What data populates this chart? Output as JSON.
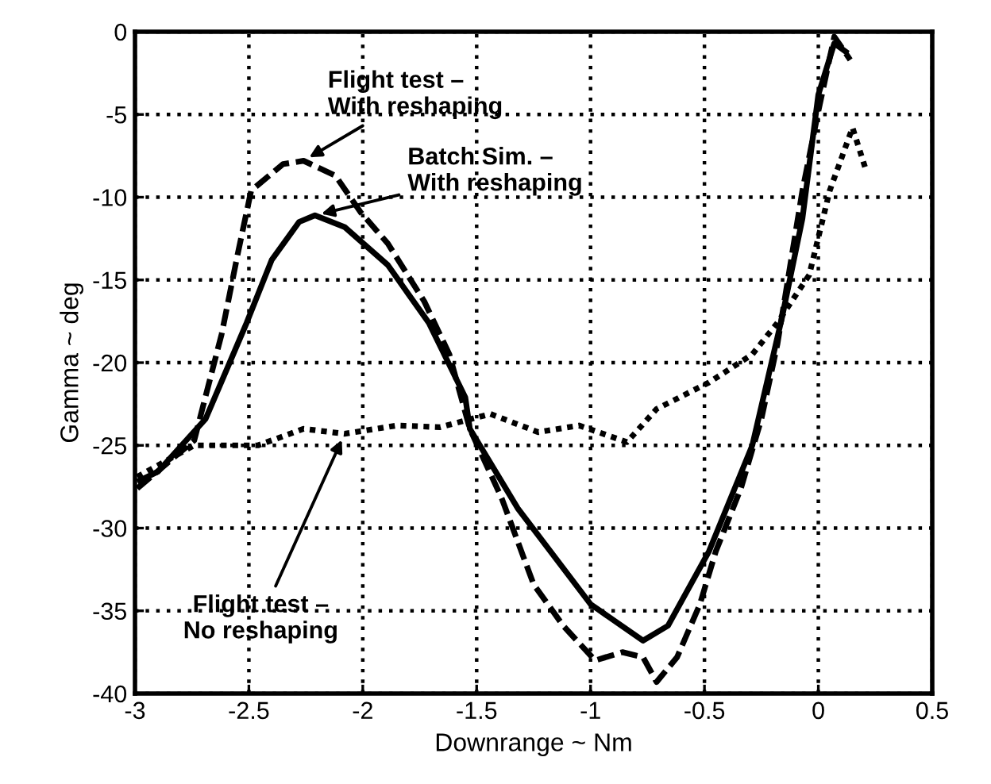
{
  "chart_data": {
    "type": "line",
    "xlabel": "Downrange ~ Nm",
    "ylabel": "Gamma ~ deg",
    "xlim": [
      -3,
      0.5
    ],
    "ylim": [
      -40,
      0
    ],
    "xticks": [
      -3,
      -2.5,
      -2,
      -1.5,
      -1,
      -0.5,
      0,
      0.5
    ],
    "yticks": [
      -40,
      -35,
      -30,
      -25,
      -20,
      -15,
      -10,
      -5,
      0
    ],
    "grid": true,
    "legend": false,
    "series": [
      {
        "color": "#000000",
        "line_style": "dashed",
        "x": [
          -2.99,
          -2.74,
          -2.62,
          -2.55,
          -2.49,
          -2.35,
          -2.26,
          -2.12,
          -2.01,
          -1.89,
          -1.73,
          -1.62,
          -1.53,
          -1.39,
          -1.25,
          -1.12,
          -0.98,
          -0.86,
          -0.77,
          -0.71,
          -0.62,
          -0.52,
          -0.45,
          -0.34,
          -0.25,
          -0.18,
          -0.07,
          0,
          0.07,
          0.14
        ],
        "values": [
          -27.6,
          -24.7,
          -18.3,
          -13.5,
          -9.6,
          -8.0,
          -7.8,
          -8.7,
          -10.9,
          -12.8,
          -16.3,
          -19.5,
          -24.0,
          -28.2,
          -33.4,
          -35.9,
          -38.0,
          -37.5,
          -37.8,
          -39.3,
          -37.8,
          -34.6,
          -31.4,
          -27.6,
          -23.4,
          -18.9,
          -9.6,
          -4.8,
          -0.3,
          -1.7
        ]
      },
      {
        "color": "#000000",
        "line_style": "solid",
        "x": [
          -2.99,
          -2.9,
          -2.69,
          -2.51,
          -2.4,
          -2.28,
          -2.21,
          -2.08,
          -1.89,
          -1.71,
          -1.55,
          -1.53,
          -1.32,
          -1.0,
          -0.77,
          -0.66,
          -0.48,
          -0.29,
          -0.16,
          -0.07,
          0,
          0.07,
          0.13
        ],
        "values": [
          -27.2,
          -26.6,
          -23.4,
          -17.6,
          -13.8,
          -11.5,
          -11.1,
          -11.8,
          -14.1,
          -17.6,
          -22.1,
          -24.0,
          -28.8,
          -34.6,
          -36.8,
          -35.9,
          -31.4,
          -25.0,
          -17.3,
          -11.3,
          -3.8,
          -0.7,
          -1.3
        ]
      },
      {
        "color": "#000000",
        "line_style": "dotted",
        "x": [
          -2.99,
          -2.74,
          -2.46,
          -2.26,
          -2.08,
          -1.85,
          -1.66,
          -1.44,
          -1.23,
          -1.05,
          -0.84,
          -0.71,
          -0.48,
          -0.29,
          -0.18,
          -0.04,
          0.05,
          0.15,
          0.21
        ],
        "values": [
          -26.9,
          -25.0,
          -25.0,
          -24.0,
          -24.3,
          -23.8,
          -23.9,
          -23.1,
          -24.2,
          -23.8,
          -24.8,
          -22.8,
          -21.2,
          -19.5,
          -17.6,
          -14.7,
          -9.6,
          -5.8,
          -8.4
        ]
      }
    ],
    "annotations": [
      {
        "text": "Flight test –\nWith reshaping",
        "x": -2.26,
        "y": -7.8
      },
      {
        "text": "Batch Sim. –\nWith reshaping",
        "x": -2.21,
        "y": -11.1
      },
      {
        "text": "Flight test –\nNo reshaping",
        "x": -2.08,
        "y": -24.3
      }
    ]
  }
}
